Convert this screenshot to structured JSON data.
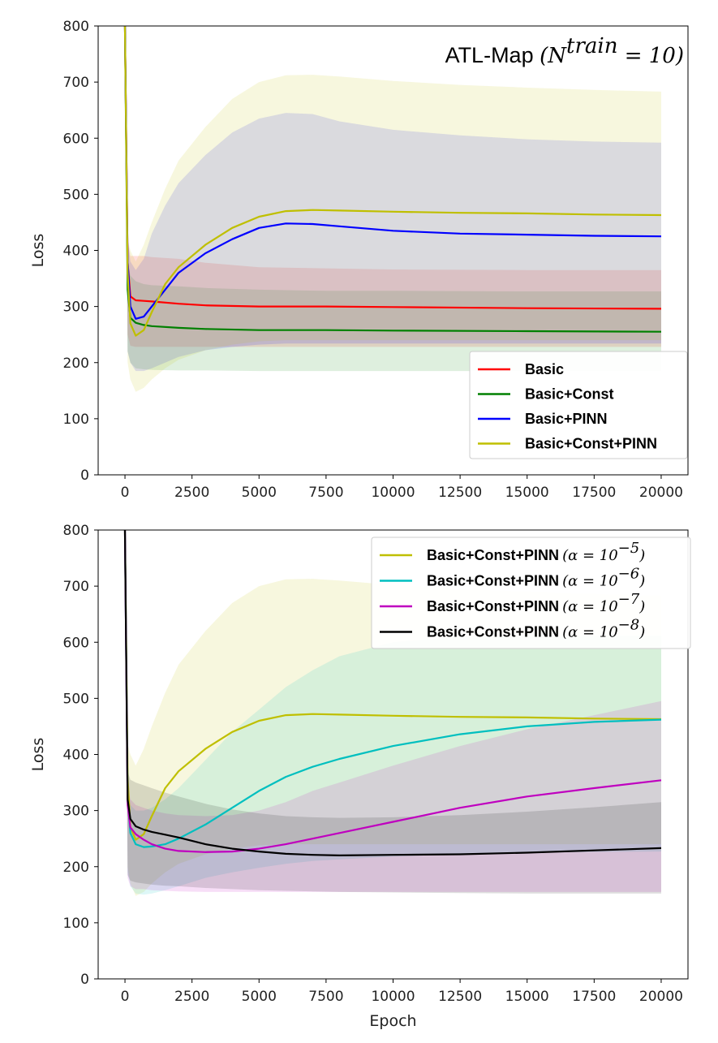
{
  "chart_data": [
    {
      "type": "line",
      "title": "ATL-Map",
      "title_math": "(N",
      "title_sup": "train",
      "title_tail": " = 10)",
      "xlabel": "",
      "ylabel": "Loss",
      "xlim": [
        -1000,
        21000
      ],
      "ylim": [
        0,
        800
      ],
      "xticks": [
        0,
        2500,
        5000,
        7500,
        10000,
        12500,
        15000,
        17500,
        20000
      ],
      "yticks": [
        0,
        100,
        200,
        300,
        400,
        500,
        600,
        700,
        800
      ],
      "grid": false,
      "legend_position": "lower-right",
      "series": [
        {
          "name": "Basic",
          "color": "#ff0000",
          "x": [
            0,
            100,
            200,
            400,
            700,
            1000,
            2000,
            3000,
            5000,
            7500,
            10000,
            15000,
            20000
          ],
          "y": [
            800,
            380,
            318,
            311,
            310,
            309,
            305,
            302,
            300,
            300,
            299,
            297,
            296
          ],
          "band_low": [
            800,
            250,
            230,
            228,
            228,
            228,
            228,
            228,
            228,
            228,
            228,
            228,
            228
          ],
          "band_high": [
            800,
            420,
            390,
            390,
            390,
            388,
            385,
            378,
            370,
            368,
            366,
            365,
            365
          ]
        },
        {
          "name": "Basic+Const",
          "color": "#008000",
          "x": [
            0,
            100,
            200,
            400,
            700,
            1000,
            2000,
            3000,
            5000,
            7500,
            10000,
            15000,
            20000
          ],
          "y": [
            800,
            330,
            280,
            271,
            267,
            265,
            262,
            260,
            258,
            258,
            257,
            256,
            255
          ],
          "band_low": [
            800,
            220,
            200,
            190,
            188,
            187,
            186,
            186,
            185,
            185,
            185,
            185,
            185
          ],
          "band_high": [
            800,
            380,
            355,
            345,
            340,
            338,
            336,
            333,
            330,
            328,
            328,
            327,
            327
          ]
        },
        {
          "name": "Basic+PINN",
          "color": "#0000ff",
          "x": [
            0,
            100,
            200,
            400,
            700,
            1000,
            1500,
            2000,
            3000,
            4000,
            5000,
            6000,
            7000,
            8000,
            10000,
            12500,
            15000,
            17500,
            20000
          ],
          "y": [
            800,
            380,
            300,
            278,
            282,
            300,
            330,
            360,
            395,
            420,
            440,
            448,
            447,
            443,
            435,
            430,
            428,
            426,
            425
          ],
          "band_low": [
            800,
            220,
            200,
            185,
            185,
            190,
            200,
            210,
            222,
            228,
            232,
            234,
            234,
            234,
            234,
            234,
            234,
            234,
            234
          ],
          "band_high": [
            800,
            420,
            380,
            365,
            385,
            430,
            480,
            520,
            570,
            610,
            635,
            645,
            643,
            630,
            615,
            605,
            598,
            594,
            592
          ]
        },
        {
          "name": "Basic+Const+PINN",
          "color": "#bfbf00",
          "x": [
            0,
            100,
            200,
            400,
            700,
            1000,
            1500,
            2000,
            3000,
            4000,
            5000,
            6000,
            7000,
            8000,
            10000,
            12500,
            15000,
            17500,
            20000
          ],
          "y": [
            800,
            360,
            270,
            248,
            258,
            290,
            340,
            370,
            410,
            440,
            460,
            470,
            472,
            471,
            469,
            467,
            466,
            464,
            463
          ],
          "band_low": [
            800,
            200,
            170,
            148,
            155,
            170,
            190,
            205,
            222,
            232,
            238,
            240,
            240,
            240,
            240,
            240,
            240,
            240,
            240
          ],
          "band_high": [
            800,
            420,
            400,
            380,
            410,
            450,
            510,
            560,
            620,
            670,
            700,
            712,
            713,
            710,
            702,
            695,
            690,
            686,
            683
          ]
        }
      ]
    },
    {
      "type": "line",
      "title": "",
      "xlabel": "Epoch",
      "ylabel": "Loss",
      "xlim": [
        -1000,
        21000
      ],
      "ylim": [
        0,
        800
      ],
      "xticks": [
        0,
        2500,
        5000,
        7500,
        10000,
        12500,
        15000,
        17500,
        20000
      ],
      "yticks": [
        0,
        100,
        200,
        300,
        400,
        500,
        600,
        700,
        800
      ],
      "grid": false,
      "legend_position": "upper-right",
      "series": [
        {
          "name": "Basic+Const+PINN",
          "alpha_text": "(α = 10",
          "alpha_exp": "−5",
          "color": "#bfbf00",
          "x": [
            0,
            100,
            200,
            400,
            700,
            1000,
            1500,
            2000,
            3000,
            4000,
            5000,
            6000,
            7000,
            8000,
            10000,
            12500,
            15000,
            17500,
            20000
          ],
          "y": [
            800,
            360,
            270,
            248,
            258,
            290,
            340,
            370,
            410,
            440,
            460,
            470,
            472,
            471,
            469,
            467,
            466,
            464,
            463
          ],
          "band_low": [
            800,
            200,
            170,
            148,
            155,
            170,
            190,
            205,
            222,
            232,
            238,
            240,
            240,
            240,
            240,
            240,
            240,
            240,
            240
          ],
          "band_high": [
            800,
            420,
            400,
            380,
            410,
            450,
            510,
            560,
            620,
            670,
            700,
            712,
            713,
            710,
            702,
            695,
            690,
            686,
            683
          ]
        },
        {
          "name": "Basic+Const+PINN",
          "alpha_text": "(α = 10",
          "alpha_exp": "−6",
          "color": "#00bfbf",
          "x": [
            0,
            100,
            200,
            400,
            700,
            1000,
            1500,
            2000,
            3000,
            4000,
            5000,
            6000,
            7000,
            8000,
            10000,
            12500,
            15000,
            17500,
            20000
          ],
          "y": [
            800,
            320,
            260,
            240,
            235,
            236,
            240,
            250,
            275,
            305,
            335,
            360,
            378,
            392,
            415,
            436,
            450,
            458,
            462
          ],
          "band_low": [
            800,
            190,
            165,
            152,
            150,
            152,
            158,
            165,
            180,
            190,
            198,
            205,
            210,
            213,
            218,
            222,
            225,
            226,
            227
          ],
          "band_high": [
            800,
            350,
            310,
            300,
            300,
            305,
            320,
            340,
            390,
            440,
            480,
            520,
            550,
            575,
            600,
            610,
            612,
            612,
            612
          ]
        },
        {
          "name": "Basic+Const+PINN",
          "alpha_text": "(α = 10",
          "alpha_exp": "−7",
          "color": "#bf00bf",
          "x": [
            0,
            100,
            200,
            400,
            700,
            1000,
            1500,
            2000,
            3000,
            4000,
            5000,
            6000,
            7000,
            8000,
            10000,
            12500,
            15000,
            17500,
            20000
          ],
          "y": [
            800,
            310,
            270,
            258,
            248,
            240,
            232,
            228,
            226,
            227,
            232,
            240,
            250,
            260,
            280,
            305,
            325,
            340,
            354
          ],
          "band_low": [
            800,
            180,
            165,
            160,
            160,
            158,
            157,
            156,
            155,
            155,
            155,
            155,
            155,
            155,
            155,
            155,
            155,
            155,
            155
          ],
          "band_high": [
            800,
            340,
            320,
            310,
            305,
            300,
            295,
            292,
            290,
            292,
            300,
            315,
            335,
            350,
            380,
            415,
            445,
            470,
            495
          ]
        },
        {
          "name": "Basic+Const+PINN",
          "alpha_text": "(α = 10",
          "alpha_exp": "−8",
          "color": "#000000",
          "x": [
            0,
            100,
            200,
            400,
            700,
            1000,
            1500,
            2000,
            3000,
            4000,
            5000,
            6000,
            7000,
            8000,
            10000,
            12500,
            15000,
            17500,
            20000
          ],
          "y": [
            800,
            320,
            285,
            272,
            266,
            262,
            257,
            252,
            240,
            232,
            227,
            223,
            221,
            220,
            221,
            222,
            225,
            229,
            233
          ],
          "band_low": [
            800,
            185,
            175,
            172,
            170,
            168,
            166,
            165,
            162,
            160,
            158,
            157,
            156,
            155,
            154,
            153,
            152,
            152,
            152
          ],
          "band_high": [
            800,
            370,
            355,
            350,
            345,
            340,
            332,
            325,
            312,
            302,
            295,
            290,
            288,
            287,
            288,
            292,
            298,
            306,
            315
          ]
        }
      ]
    }
  ]
}
